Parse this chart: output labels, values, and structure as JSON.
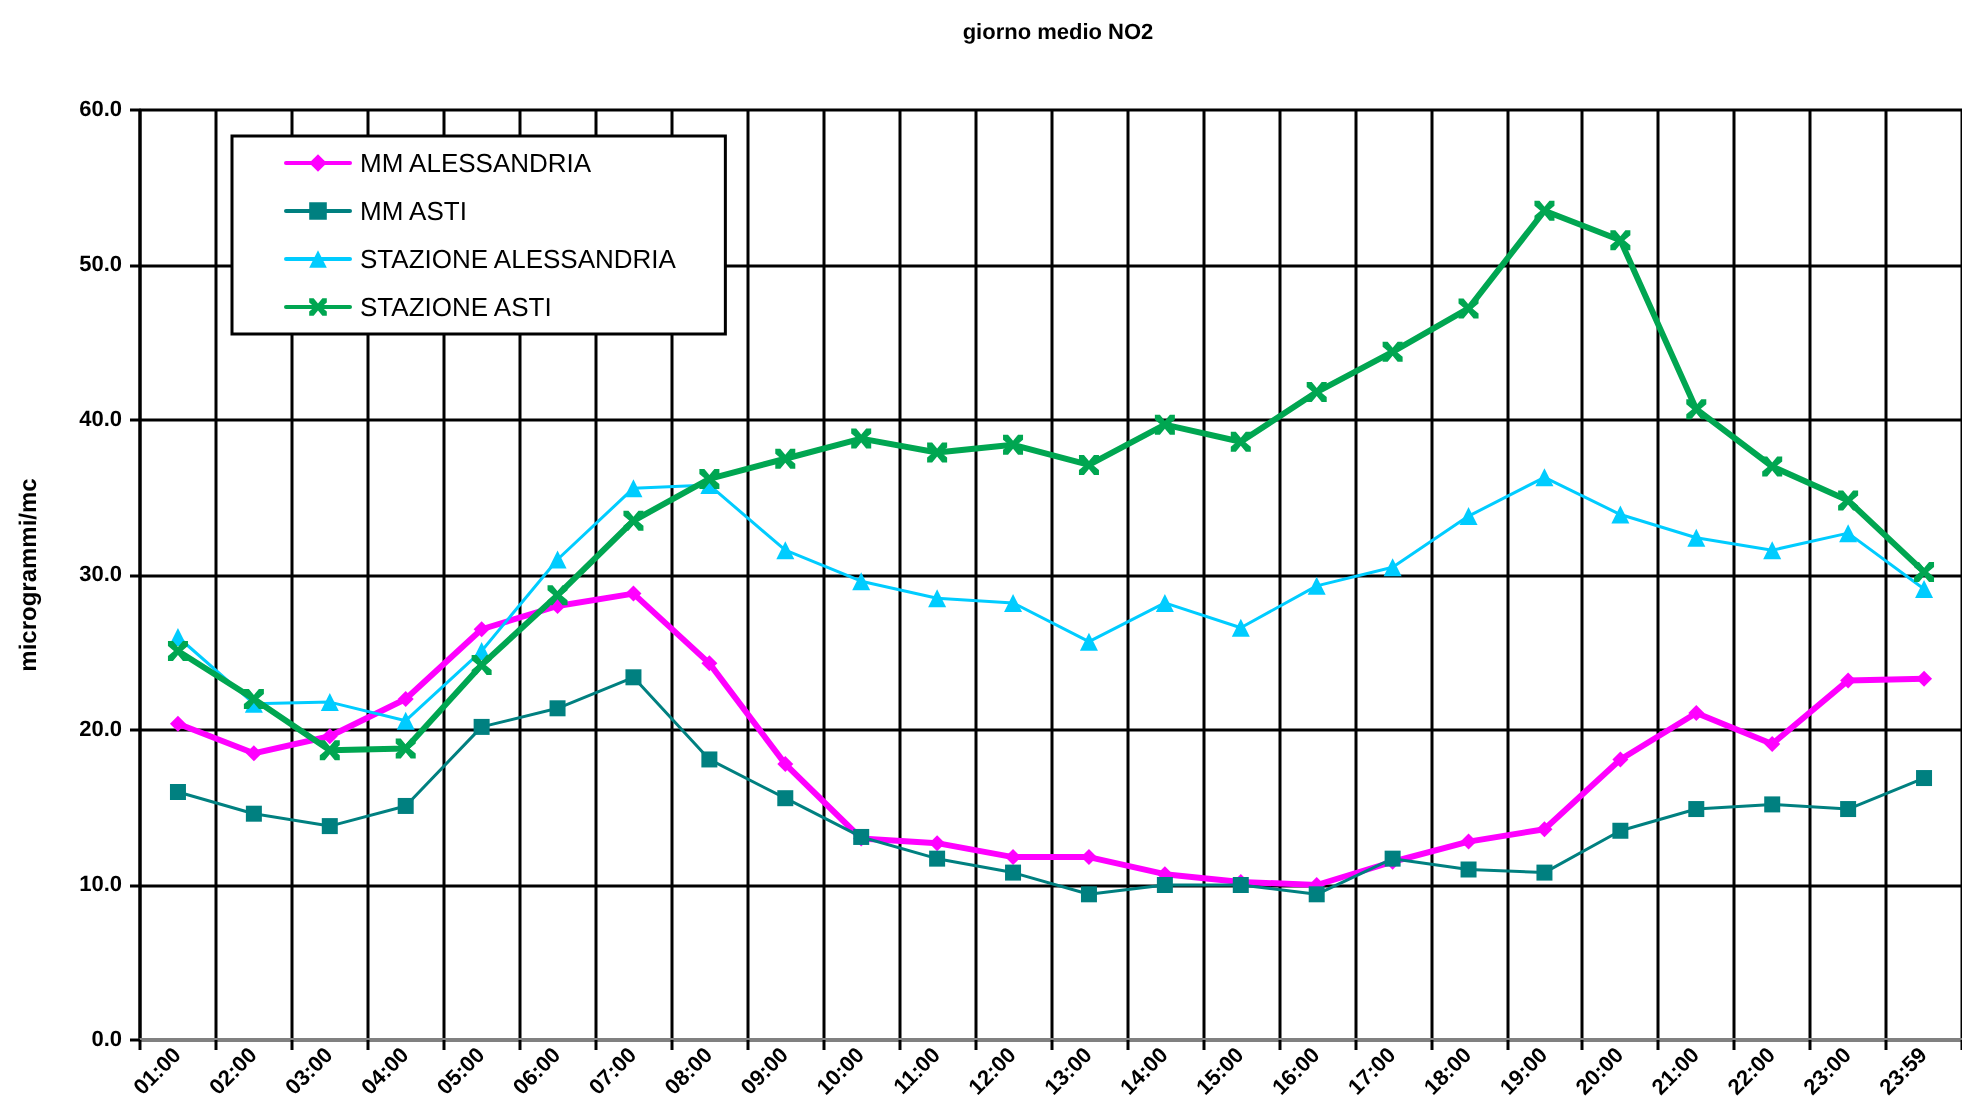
{
  "chart_data": {
    "type": "line",
    "title": "giorno medio NO2",
    "ylabel": "microgrammi/mc",
    "categories": [
      "01:00",
      "02:00",
      "03:00",
      "04:00",
      "05:00",
      "06:00",
      "07:00",
      "08:00",
      "09:00",
      "10:00",
      "11:00",
      "12:00",
      "13:00",
      "14:00",
      "15:00",
      "16:00",
      "17:00",
      "18:00",
      "19:00",
      "20:00",
      "21:00",
      "22:00",
      "23:00",
      "23:59"
    ],
    "series": [
      {
        "name": "MM ALESSANDRIA",
        "color": "#ff00ff",
        "marker": "diamond",
        "values": [
          20.4,
          18.5,
          19.6,
          22.0,
          26.5,
          28.0,
          28.8,
          24.3,
          17.8,
          13.0,
          12.7,
          11.8,
          11.8,
          10.7,
          10.2,
          10.0,
          11.5,
          12.8,
          13.6,
          18.1,
          21.1,
          19.1,
          23.2,
          23.3
        ]
      },
      {
        "name": "MM ASTI",
        "color": "#008080",
        "marker": "square",
        "values": [
          16.0,
          14.6,
          13.8,
          15.1,
          20.2,
          21.4,
          23.4,
          18.1,
          15.6,
          13.1,
          11.7,
          10.8,
          9.4,
          10.0,
          10.0,
          9.4,
          11.7,
          11.0,
          10.8,
          13.5,
          14.9,
          15.2,
          14.9,
          16.9
        ]
      },
      {
        "name": "STAZIONE ALESSANDRIA",
        "color": "#00ccff",
        "marker": "triangle",
        "values": [
          26.0,
          21.7,
          21.8,
          20.6,
          25.1,
          31.0,
          35.6,
          35.8,
          31.6,
          29.6,
          28.5,
          28.2,
          25.7,
          28.2,
          26.6,
          29.3,
          30.5,
          33.8,
          36.3,
          33.9,
          32.4,
          31.6,
          32.7,
          29.1
        ]
      },
      {
        "name": "STAZIONE ASTI",
        "color": "#00a651",
        "marker": "cross",
        "values": [
          25.1,
          22.0,
          18.7,
          18.8,
          24.2,
          28.7,
          33.5,
          36.2,
          37.5,
          38.8,
          37.9,
          38.4,
          37.1,
          39.7,
          38.6,
          41.8,
          44.4,
          47.2,
          53.5,
          51.6,
          40.7,
          37.0,
          34.8,
          30.2
        ]
      }
    ],
    "ylim": [
      0,
      60
    ],
    "yticks": [
      {
        "value": 0,
        "label": "0.0"
      },
      {
        "value": 10,
        "label": "10.0"
      },
      {
        "value": 20,
        "label": "20.0"
      },
      {
        "value": 30,
        "label": "30.0"
      },
      {
        "value": 40,
        "label": "40.0"
      },
      {
        "value": 50,
        "label": "50.0"
      },
      {
        "value": 60,
        "label": "60.0"
      }
    ],
    "grid": true,
    "legend": "top left",
    "line_style": "solid"
  }
}
